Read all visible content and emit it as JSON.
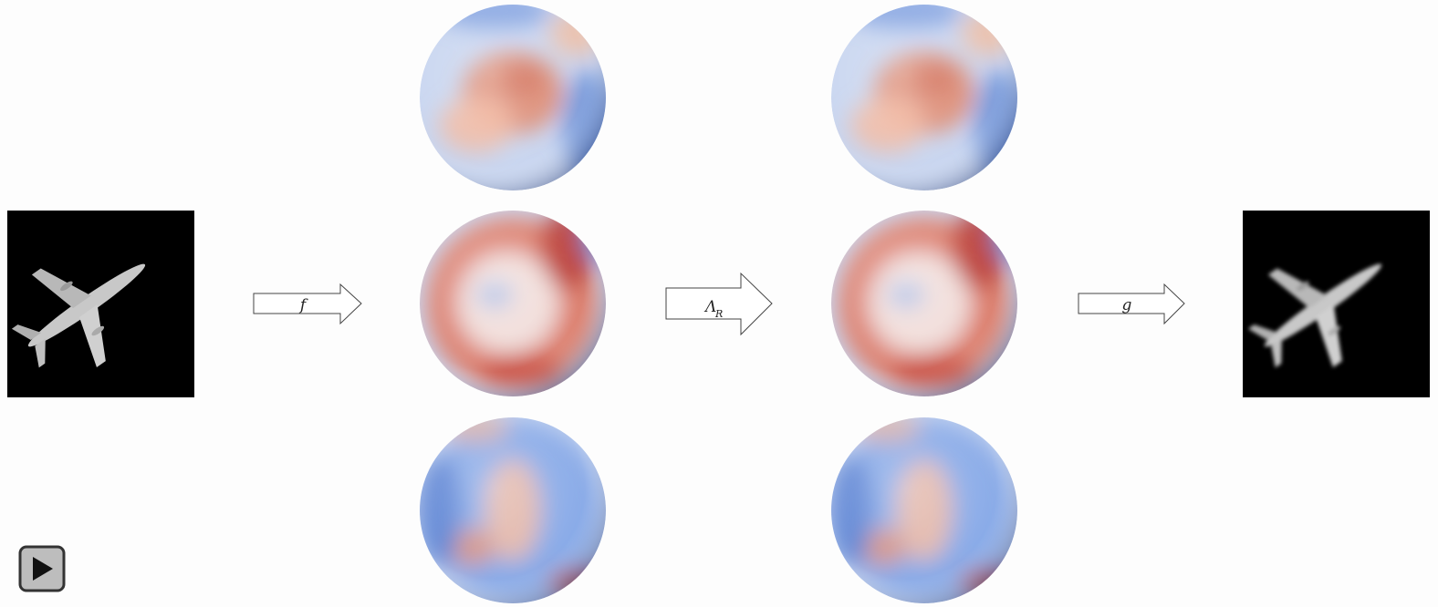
{
  "arrows": [
    {
      "label": "f"
    },
    {
      "label": "Λ",
      "subscript": "R"
    },
    {
      "label": "g"
    }
  ]
}
